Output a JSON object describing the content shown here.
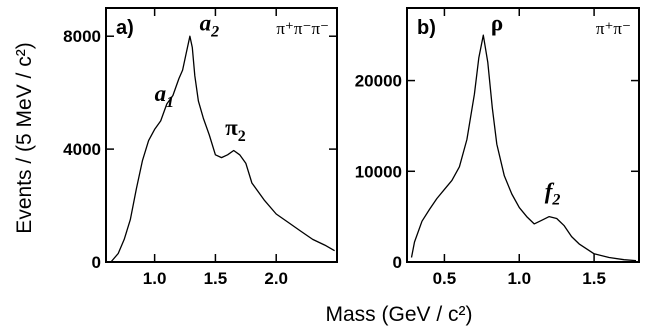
{
  "ylabel": "Events / (5 MeV / c²)",
  "xlabel": "Mass  (GeV / c²)",
  "chart_data": [
    {
      "type": "line",
      "panel": "a)",
      "channel": "π⁺π⁻π⁻",
      "xlim": [
        0.6,
        2.5
      ],
      "ylim": [
        0,
        9000
      ],
      "x_ticks": [
        {
          "value": 1.0,
          "label": "1.0"
        },
        {
          "value": 1.5,
          "label": "1.5"
        },
        {
          "value": 2.0,
          "label": "2.0"
        }
      ],
      "y_ticks": [
        {
          "value": 0,
          "label": "0"
        },
        {
          "value": 4000,
          "label": "4000"
        },
        {
          "value": 8000,
          "label": "8000"
        }
      ],
      "annotations": [
        {
          "text": "a",
          "sub": "1",
          "x": 1.0,
          "y": 5700
        },
        {
          "text": "a",
          "sub": "2",
          "x": 1.37,
          "y": 8200
        },
        {
          "text": "π",
          "sub": "2",
          "x": 1.58,
          "y": 4500
        }
      ],
      "x": [
        0.64,
        0.7,
        0.75,
        0.8,
        0.85,
        0.9,
        0.95,
        1.0,
        1.05,
        1.1,
        1.15,
        1.2,
        1.23,
        1.26,
        1.29,
        1.31,
        1.33,
        1.36,
        1.4,
        1.45,
        1.5,
        1.55,
        1.6,
        1.65,
        1.7,
        1.75,
        1.8,
        1.9,
        2.0,
        2.1,
        2.2,
        2.3,
        2.4,
        2.48
      ],
      "y": [
        0,
        300,
        800,
        1500,
        2600,
        3600,
        4300,
        4700,
        5000,
        5600,
        5900,
        6500,
        6800,
        7400,
        8000,
        7600,
        6600,
        5700,
        5100,
        4500,
        3800,
        3700,
        3800,
        3950,
        3800,
        3500,
        2800,
        2200,
        1700,
        1400,
        1100,
        800,
        600,
        400
      ]
    },
    {
      "type": "line",
      "panel": "b)",
      "channel": "π⁺π⁻",
      "xlim": [
        0.25,
        1.8
      ],
      "ylim": [
        0,
        28000
      ],
      "x_ticks": [
        {
          "value": 0.5,
          "label": "0.5"
        },
        {
          "value": 1.0,
          "label": "1.0"
        },
        {
          "value": 1.5,
          "label": "1.5"
        }
      ],
      "y_ticks": [
        {
          "value": 0,
          "label": "0"
        },
        {
          "value": 10000,
          "label": "10000"
        },
        {
          "value": 20000,
          "label": "20000"
        }
      ],
      "annotations": [
        {
          "text": "ρ",
          "sub": "",
          "x": 0.81,
          "y": 25500
        },
        {
          "text": "f",
          "sub": "2",
          "x": 1.17,
          "y": 7000
        }
      ],
      "x": [
        0.28,
        0.3,
        0.35,
        0.4,
        0.45,
        0.5,
        0.55,
        0.6,
        0.65,
        0.7,
        0.73,
        0.76,
        0.79,
        0.82,
        0.85,
        0.9,
        0.95,
        1.0,
        1.05,
        1.1,
        1.15,
        1.2,
        1.25,
        1.3,
        1.35,
        1.4,
        1.5,
        1.6,
        1.7,
        1.78
      ],
      "y": [
        500,
        2200,
        4500,
        5800,
        7000,
        8000,
        9000,
        10500,
        13500,
        18500,
        22500,
        25000,
        22000,
        17000,
        13000,
        9500,
        7500,
        6000,
        5000,
        4200,
        4600,
        5000,
        4800,
        4000,
        2800,
        2000,
        900,
        500,
        250,
        150
      ]
    }
  ]
}
